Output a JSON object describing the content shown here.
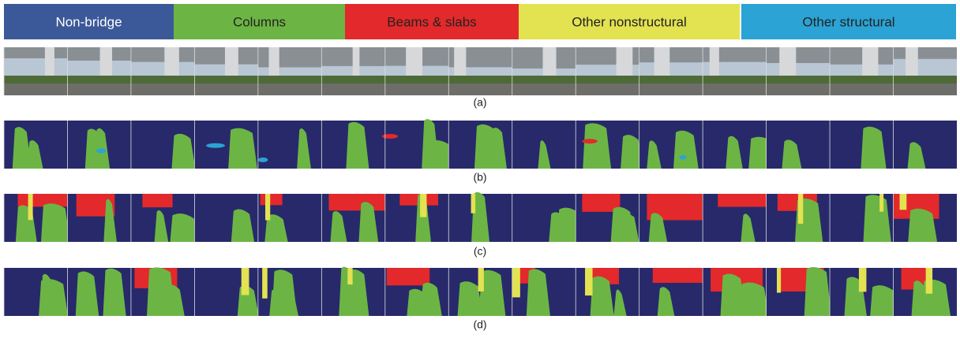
{
  "legend": [
    {
      "label": "Non-bridge",
      "color": "#3b5998"
    },
    {
      "label": "Columns",
      "color": "#6cb544"
    },
    {
      "label": "Beams & slabs",
      "color": "#e3292b"
    },
    {
      "label": "Other nonstructural",
      "color": "#e3e251"
    },
    {
      "label": "Other structural",
      "color": "#2ba3d4"
    }
  ],
  "panels": [
    {
      "label": "(a)"
    },
    {
      "label": "(b)"
    },
    {
      "label": "(c)"
    },
    {
      "label": "(d)"
    }
  ]
}
